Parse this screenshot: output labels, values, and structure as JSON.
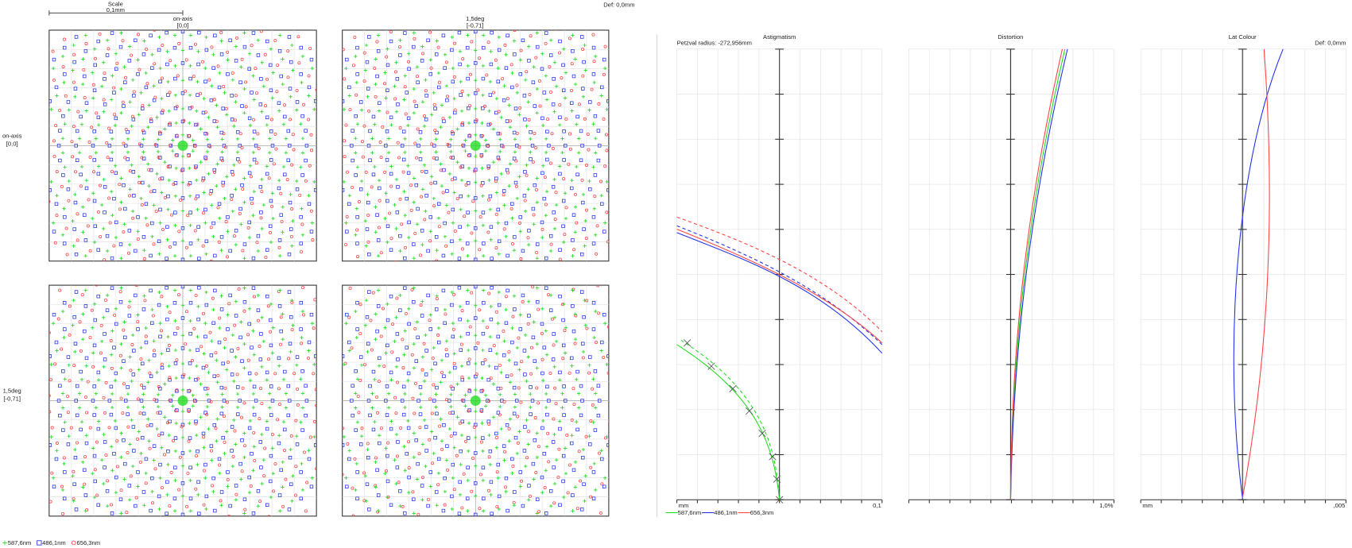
{
  "header": {
    "scale_label": "Scale",
    "scale_value": "0,1mm",
    "defocus": "Def: 0,0mm"
  },
  "spot": {
    "columns": [
      {
        "field": "on-axis",
        "coords": "[0,0]"
      },
      {
        "field": "1,5deg",
        "coords": "[-0,71]"
      }
    ],
    "rows": [
      {
        "field": "on-axis",
        "coords": "[0,0]"
      },
      {
        "field": "1,5deg",
        "coords": "[-0,71]"
      }
    ]
  },
  "wavelengths": [
    {
      "name": "587,6nm",
      "color": "#22dd22"
    },
    {
      "name": "486,1nm",
      "color": "#2233ee"
    },
    {
      "name": "656,3nm",
      "color": "#ff4444"
    }
  ],
  "plots": {
    "petzval": "Petzval radius: -272,956mm",
    "astigmatism": {
      "title": "Astigmatism",
      "x_left": "mm",
      "x_right": "0,1"
    },
    "distortion": {
      "title": "Distortion",
      "x_right": "1,0%"
    },
    "lat_colour": {
      "title": "Lat Colour",
      "defocus": "Def: 0,0mm",
      "x_left": "mm",
      "x_right": ",005"
    }
  }
}
